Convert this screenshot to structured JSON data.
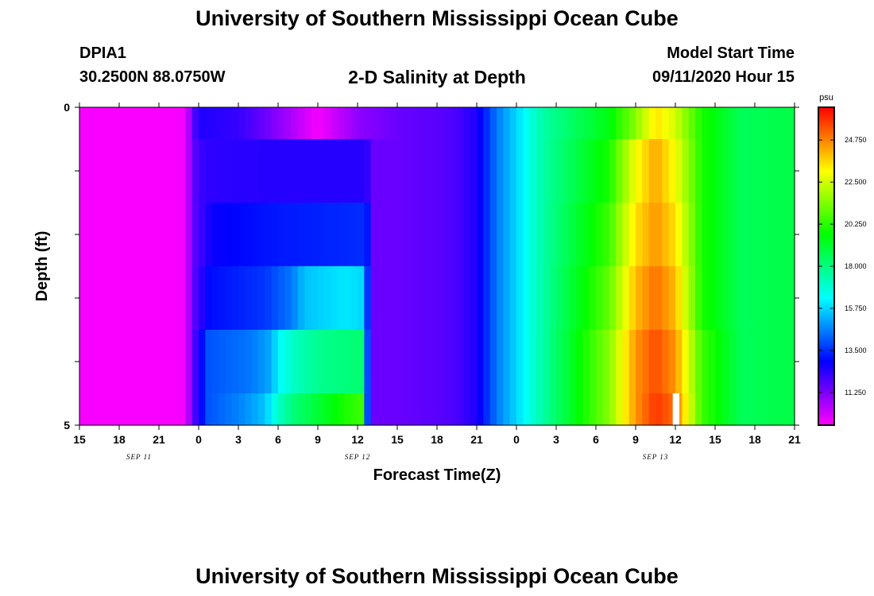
{
  "header": {
    "title": "University of Southern Mississippi Ocean Cube",
    "station": "DPIA1",
    "coords": "30.2500N 88.0750W",
    "subtitle": "2-D Salinity at Depth",
    "start_label": "Model Start Time",
    "start_value": "09/11/2020 Hour 15"
  },
  "footer": {
    "title": "University of Southern Mississippi Ocean Cube"
  },
  "chart_data": {
    "type": "heatmap",
    "title": "2-D Salinity at Depth",
    "xlabel": "Forecast Time(Z)",
    "ylabel": "Depth (ft)",
    "ylim": [
      0,
      5
    ],
    "y_tick_labels": [
      "0",
      "5"
    ],
    "x_tick_labels": [
      "15",
      "18",
      "21",
      "0",
      "3",
      "6",
      "9",
      "12",
      "15",
      "18",
      "21",
      "0",
      "3",
      "6",
      "9",
      "12",
      "15",
      "18",
      "21"
    ],
    "x_range_hours": [
      0,
      54
    ],
    "date_labels": [
      {
        "text": "SEP 11",
        "hour": 4.5
      },
      {
        "text": "SEP 12",
        "hour": 21
      },
      {
        "text": "SEP 13",
        "hour": 43.5
      }
    ],
    "colorbar": {
      "unit": "psu",
      "vmin": 9.5,
      "vmax": 26.5,
      "tick_values": [
        11.25,
        13.5,
        15.75,
        18.0,
        20.25,
        22.5,
        24.75
      ],
      "tick_labels": [
        "11.250",
        "13.500",
        "15.750",
        "18.000",
        "20.250",
        "22.500",
        "24.750"
      ]
    },
    "depth_layers": [
      {
        "depth_range": [
          0,
          0.5
        ],
        "profile": [
          [
            0,
            9.6
          ],
          [
            8,
            9.6
          ],
          [
            8.5,
            11.5
          ],
          [
            9,
            12.5
          ],
          [
            12,
            12.2
          ],
          [
            14,
            11.5
          ],
          [
            16,
            10.6
          ],
          [
            18,
            9.6
          ],
          [
            21,
            11
          ],
          [
            24,
            11.5
          ],
          [
            28,
            11.8
          ],
          [
            30,
            12.5
          ],
          [
            31.5,
            14.5
          ],
          [
            35,
            17.5
          ],
          [
            40,
            19.5
          ],
          [
            42,
            21.5
          ],
          [
            43.5,
            23.5
          ],
          [
            45,
            22.5
          ],
          [
            47,
            20
          ],
          [
            50,
            18.5
          ],
          [
            54,
            18.8
          ]
        ]
      },
      {
        "depth_range": [
          0.5,
          1.5
        ],
        "profile": [
          [
            0,
            9.6
          ],
          [
            8,
            9.6
          ],
          [
            8.5,
            11.5
          ],
          [
            9,
            12
          ],
          [
            9.5,
            12.3
          ],
          [
            14,
            12.4
          ],
          [
            21.7,
            12.4
          ],
          [
            22,
            11.5
          ],
          [
            24,
            11.5
          ],
          [
            28,
            11.8
          ],
          [
            30,
            12.5
          ],
          [
            31.5,
            14.5
          ],
          [
            35,
            17.5
          ],
          [
            40,
            20
          ],
          [
            42,
            23
          ],
          [
            43.5,
            24.3
          ],
          [
            45,
            23
          ],
          [
            47,
            20
          ],
          [
            50,
            18.5
          ],
          [
            54,
            18.8
          ]
        ]
      },
      {
        "depth_range": [
          1.5,
          2.5
        ],
        "profile": [
          [
            0,
            9.6
          ],
          [
            8,
            9.6
          ],
          [
            8.5,
            11.5
          ],
          [
            10,
            12.8
          ],
          [
            15,
            13.2
          ],
          [
            20,
            13.4
          ],
          [
            21.7,
            13.5
          ],
          [
            22,
            11.5
          ],
          [
            24,
            11.5
          ],
          [
            28,
            11.8
          ],
          [
            30,
            12.5
          ],
          [
            31.5,
            14.5
          ],
          [
            35,
            17.5
          ],
          [
            40,
            20.5
          ],
          [
            42,
            23.5
          ],
          [
            43.5,
            24.5
          ],
          [
            45,
            23.5
          ],
          [
            47,
            20
          ],
          [
            50,
            18.5
          ],
          [
            54,
            18.8
          ]
        ]
      },
      {
        "depth_range": [
          2.5,
          3.5
        ],
        "profile": [
          [
            0,
            9.6
          ],
          [
            8,
            9.6
          ],
          [
            8.5,
            11.5
          ],
          [
            9.7,
            13
          ],
          [
            14,
            13.6
          ],
          [
            16,
            14.5
          ],
          [
            17,
            15.5
          ],
          [
            20,
            16
          ],
          [
            21.3,
            15.8
          ],
          [
            21.7,
            14
          ],
          [
            22,
            11.5
          ],
          [
            24,
            11.5
          ],
          [
            28,
            11.8
          ],
          [
            30,
            12.5
          ],
          [
            31.5,
            14.5
          ],
          [
            35,
            17.5
          ],
          [
            40,
            21
          ],
          [
            42,
            24
          ],
          [
            43.5,
            25
          ],
          [
            45,
            24
          ],
          [
            47,
            20
          ],
          [
            50,
            18.5
          ],
          [
            54,
            18.8
          ]
        ]
      },
      {
        "depth_range": [
          3.5,
          4.5
        ],
        "profile": [
          [
            0,
            9.6
          ],
          [
            8,
            9.6
          ],
          [
            8.5,
            11.5
          ],
          [
            9.7,
            14
          ],
          [
            13,
            14.5
          ],
          [
            14.5,
            15.2
          ],
          [
            15,
            16.2
          ],
          [
            16,
            17
          ],
          [
            18,
            17.8
          ],
          [
            21.3,
            18.2
          ],
          [
            21.6,
            16.5
          ],
          [
            21.8,
            13
          ],
          [
            22,
            11.5
          ],
          [
            24,
            11.5
          ],
          [
            28,
            11.8
          ],
          [
            30,
            12.5
          ],
          [
            31.5,
            14.5
          ],
          [
            35,
            17.5
          ],
          [
            40,
            21.5
          ],
          [
            42,
            24.5
          ],
          [
            43.5,
            25.5
          ],
          [
            45,
            24.5
          ],
          [
            47,
            20.5
          ],
          [
            50,
            18.5
          ],
          [
            54,
            18.8
          ]
        ]
      },
      {
        "depth_range": [
          4.5,
          5.0
        ],
        "profile": [
          [
            0,
            9.6
          ],
          [
            8,
            9.6
          ],
          [
            8.5,
            11.5
          ],
          [
            9.7,
            14
          ],
          [
            12.5,
            14.8
          ],
          [
            14,
            15.5
          ],
          [
            15,
            17
          ],
          [
            16,
            18
          ],
          [
            18,
            19
          ],
          [
            20,
            20
          ],
          [
            21.3,
            20.5
          ],
          [
            21.6,
            16.5
          ],
          [
            21.8,
            13
          ],
          [
            22,
            11.5
          ],
          [
            24,
            11.5
          ],
          [
            28,
            11.8
          ],
          [
            30,
            12.5
          ],
          [
            31.5,
            14.5
          ],
          [
            35,
            17.5
          ],
          [
            40,
            21.5
          ],
          [
            42,
            24.5
          ],
          [
            43.5,
            25.8
          ],
          [
            45,
            25
          ],
          [
            47,
            20.5
          ],
          [
            50,
            18.5
          ],
          [
            54,
            18.8
          ]
        ]
      }
    ],
    "missing_cells": [
      {
        "hour_range": [
          44.8,
          45.3
        ],
        "depth_range": [
          4.5,
          5.0
        ]
      }
    ]
  }
}
